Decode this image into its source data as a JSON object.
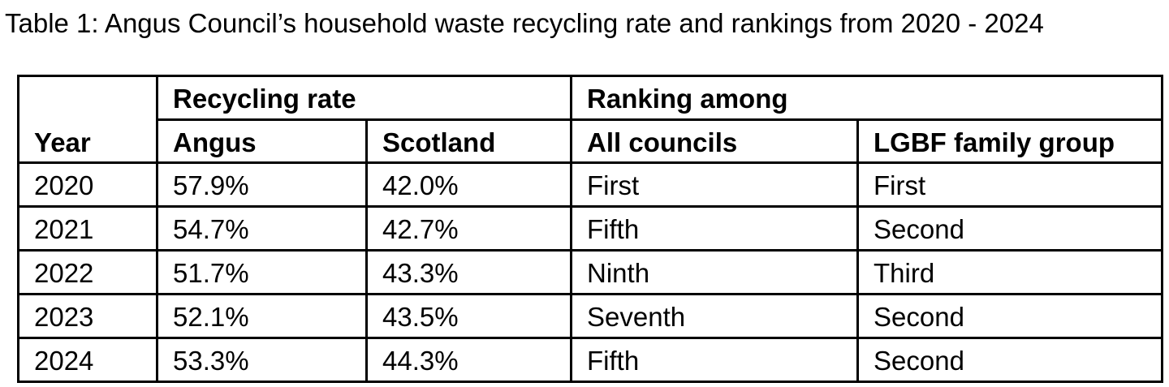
{
  "title": "Table 1: Angus Council’s household waste recycling rate and rankings from 2020 - 2024",
  "table": {
    "header": {
      "year": "Year",
      "group_recycling": "Recycling rate",
      "group_ranking": "Ranking among",
      "col_angus": "Angus",
      "col_scotland": "Scotland",
      "col_all_councils": "All councils",
      "col_lgbf": "LGBF family group"
    },
    "rows": [
      {
        "year": "2020",
        "angus": "57.9%",
        "scotland": "42.0%",
        "all_councils": "First",
        "lgbf": "First"
      },
      {
        "year": "2021",
        "angus": "54.7%",
        "scotland": "42.7%",
        "all_councils": "Fifth",
        "lgbf": "Second"
      },
      {
        "year": "2022",
        "angus": "51.7%",
        "scotland": "43.3%",
        "all_councils": "Ninth",
        "lgbf": "Third"
      },
      {
        "year": "2023",
        "angus": "52.1%",
        "scotland": "43.5%",
        "all_councils": "Seventh",
        "lgbf": "Second"
      },
      {
        "year": "2024",
        "angus": "53.3%",
        "scotland": "44.3%",
        "all_councils": "Fifth",
        "lgbf": "Second"
      }
    ]
  },
  "colors": {
    "text": "#000000",
    "border": "#000000",
    "background": "#ffffff"
  }
}
